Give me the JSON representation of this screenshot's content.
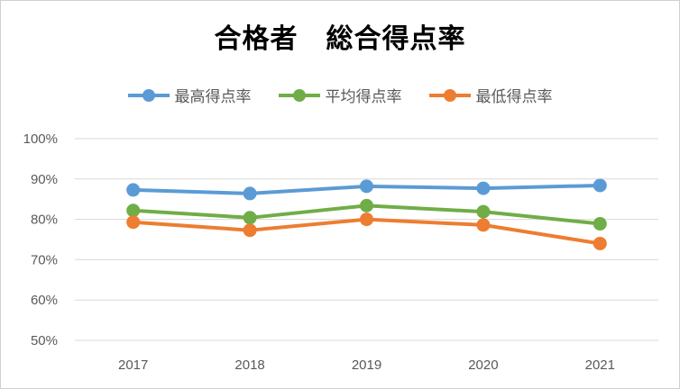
{
  "chart_data": {
    "type": "line",
    "title": "合格者　総合得点率",
    "categories": [
      "2017",
      "2018",
      "2019",
      "2020",
      "2021"
    ],
    "y_ticks": [
      "50%",
      "60%",
      "70%",
      "80%",
      "90%",
      "100%"
    ],
    "ylim": [
      50,
      100
    ],
    "grid": true,
    "legend_position": "top",
    "series": [
      {
        "name": "最高得点率",
        "color": "#5b9bd5",
        "values": [
          87.3,
          86.4,
          88.2,
          87.7,
          88.4
        ]
      },
      {
        "name": "平均得点率",
        "color": "#70ad47",
        "values": [
          82.2,
          80.4,
          83.4,
          81.9,
          78.9
        ]
      },
      {
        "name": "最低得点率",
        "color": "#ed7d31",
        "values": [
          79.3,
          77.3,
          80.0,
          78.6,
          74.0
        ]
      }
    ]
  }
}
